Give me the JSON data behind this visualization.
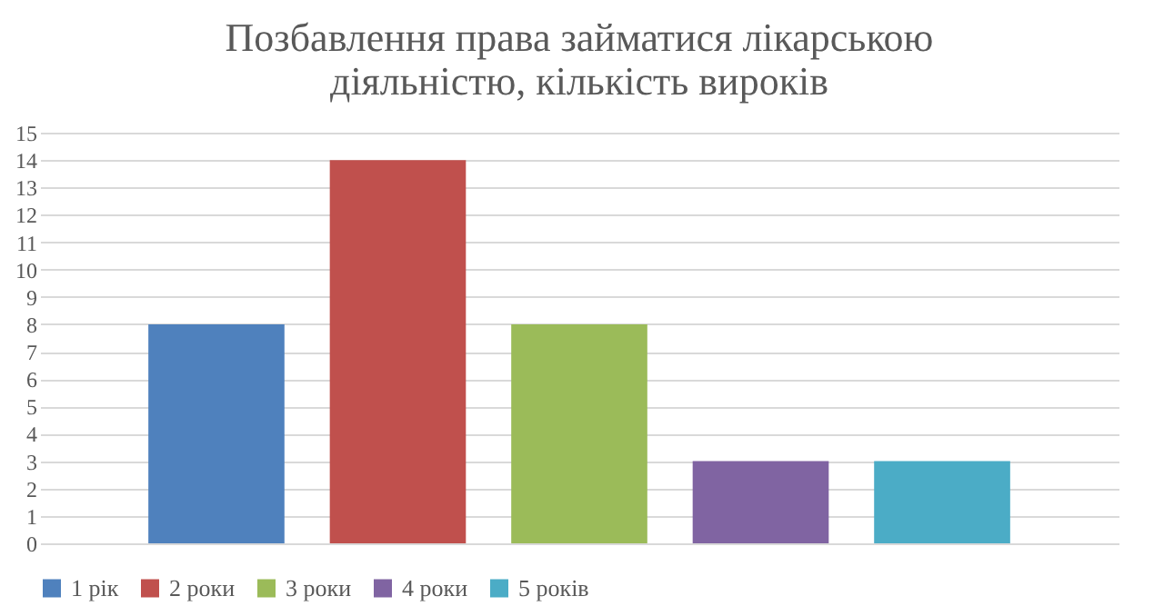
{
  "chart_data": {
    "type": "bar",
    "title": "Позбавлення права займатися лікарською\nдіяльністю, кількість вироків",
    "categories": [
      null
    ],
    "series": [
      {
        "name": "1 рік",
        "color": "#4f81bd",
        "values": [
          8
        ]
      },
      {
        "name": "2 роки",
        "color": "#c0504d",
        "values": [
          14
        ]
      },
      {
        "name": "3 роки",
        "color": "#9bbb59",
        "values": [
          8
        ]
      },
      {
        "name": "4 роки",
        "color": "#8064a2",
        "values": [
          3
        ]
      },
      {
        "name": "5 років",
        "color": "#4bacc6",
        "values": [
          3
        ]
      }
    ],
    "ylim": [
      0,
      15
    ],
    "yticks": [
      0,
      1,
      2,
      3,
      4,
      5,
      6,
      7,
      8,
      9,
      10,
      11,
      12,
      13,
      14,
      15
    ],
    "grid": "y",
    "legend": "bottom",
    "tick_labels": "y"
  }
}
